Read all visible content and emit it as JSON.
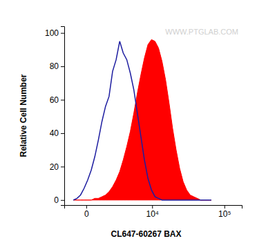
{
  "chart_data": {
    "type": "histogram_overlay",
    "x_label": "CL647-60267 BAX",
    "y_label": "Relative Cell Number",
    "annotations": [
      "WWW.PTGLAB.COM"
    ],
    "log": "x",
    "x": [
      -754,
      -515,
      -300,
      -107,
      70,
      260,
      470,
      704,
      964,
      1254,
      1574,
      1931,
      2328,
      2771,
      3259,
      3805,
      4410,
      5083,
      5832,
      6665,
      7590,
      8614,
      9758,
      11030,
      12433,
      14004,
      15752,
      17696,
      19830,
      22240,
      24900,
      27840,
      31140,
      34800,
      38870,
      43370,
      48390,
      53970,
      60140,
      67060
    ],
    "series": [
      {
        "type": "line",
        "color": "#1c1ca0",
        "values": [
          0,
          1,
          3,
          7,
          12,
          18,
          26,
          36,
          47,
          56,
          62,
          77,
          84,
          95,
          88,
          84,
          76,
          66,
          52,
          38,
          24,
          13,
          6,
          2,
          1,
          0,
          0,
          0,
          0,
          0,
          0,
          0,
          0,
          0,
          0,
          0,
          0,
          0,
          0,
          0
        ]
      },
      {
        "type": "area",
        "color": "#ff0000",
        "values": [
          0,
          0,
          0,
          0,
          0,
          0,
          1,
          1,
          2,
          3,
          5,
          8,
          12,
          17,
          24,
          32,
          41,
          52,
          64,
          75,
          85,
          93,
          96,
          95,
          91,
          83,
          72,
          58,
          43,
          30,
          19,
          11,
          6,
          3,
          2,
          1,
          0,
          0,
          0,
          0
        ]
      }
    ],
    "xlim": [
      -1500,
      170000
    ],
    "xticks": [
      0,
      {
        "value": 10000,
        "label": "10⁴"
      },
      {
        "value": 100000,
        "label": "10⁵"
      }
    ],
    "ylim": [
      -3,
      104
    ],
    "yticks": [
      0,
      20,
      40,
      60,
      80,
      100
    ]
  }
}
